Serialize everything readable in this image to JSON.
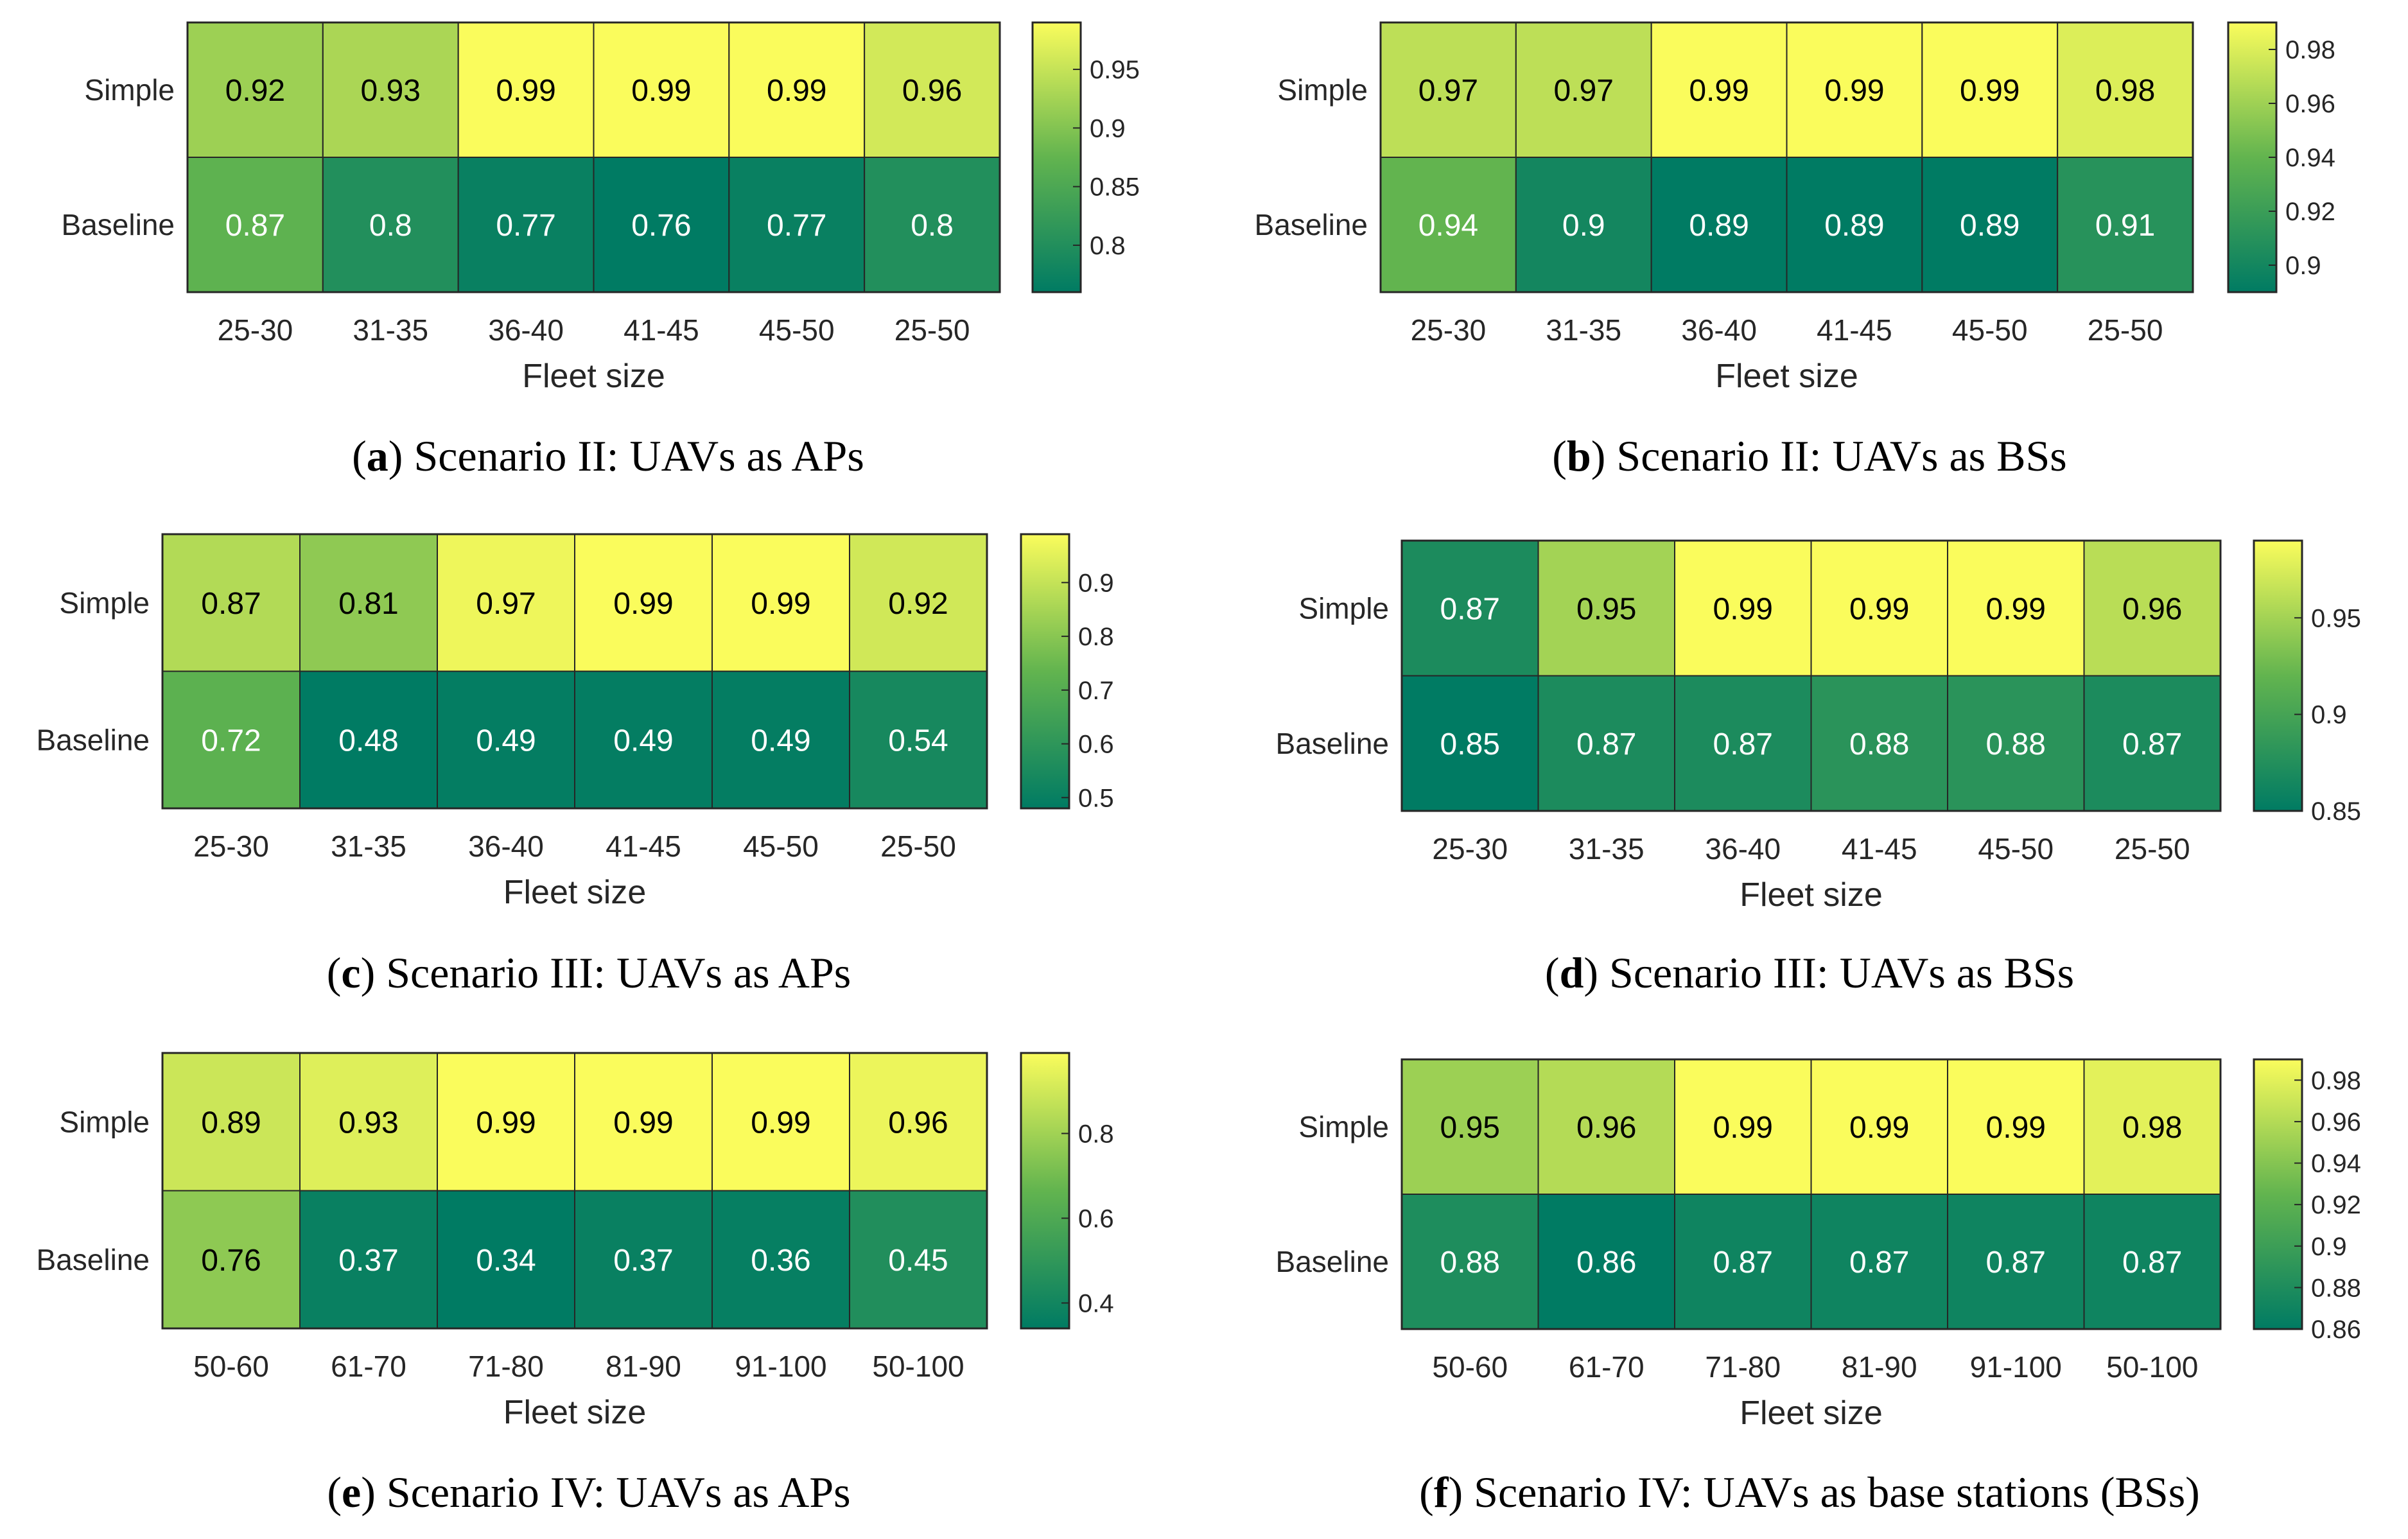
{
  "chart_data": [
    {
      "type": "heatmap",
      "id": "a",
      "caption_letter": "a",
      "caption_text": " Scenario II: UAVs as APs",
      "rows": [
        "Simple",
        "Baseline"
      ],
      "columns": [
        "25-30",
        "31-35",
        "36-40",
        "41-45",
        "45-50",
        "25-50"
      ],
      "values": [
        [
          0.92,
          0.93,
          0.99,
          0.99,
          0.99,
          0.96
        ],
        [
          0.87,
          0.8,
          0.77,
          0.76,
          0.77,
          0.8
        ]
      ],
      "xlabel": "Fleet size",
      "colorbar": {
        "min": 0.76,
        "max": 0.99,
        "ticks": [
          0.8,
          0.85,
          0.9,
          0.95
        ],
        "tick_labels": [
          "0.8",
          "0.85",
          "0.9",
          "0.95"
        ]
      }
    },
    {
      "type": "heatmap",
      "id": "b",
      "caption_letter": "b",
      "caption_text": " Scenario II: UAVs as BSs",
      "rows": [
        "Simple",
        "Baseline"
      ],
      "columns": [
        "25-30",
        "31-35",
        "36-40",
        "41-45",
        "45-50",
        "25-50"
      ],
      "values": [
        [
          0.97,
          0.97,
          0.99,
          0.99,
          0.99,
          0.98
        ],
        [
          0.94,
          0.9,
          0.89,
          0.89,
          0.89,
          0.91
        ]
      ],
      "xlabel": "Fleet size",
      "colorbar": {
        "min": 0.89,
        "max": 0.99,
        "ticks": [
          0.9,
          0.92,
          0.94,
          0.96,
          0.98
        ],
        "tick_labels": [
          "0.9",
          "0.92",
          "0.94",
          "0.96",
          "0.98"
        ]
      }
    },
    {
      "type": "heatmap",
      "id": "c",
      "caption_letter": "c",
      "caption_text": " Scenario III: UAVs as APs",
      "rows": [
        "Simple",
        "Baseline"
      ],
      "columns": [
        "25-30",
        "31-35",
        "36-40",
        "41-45",
        "45-50",
        "25-50"
      ],
      "values": [
        [
          0.87,
          0.81,
          0.97,
          0.99,
          0.99,
          0.92
        ],
        [
          0.72,
          0.48,
          0.49,
          0.49,
          0.49,
          0.54
        ]
      ],
      "xlabel": "Fleet size",
      "colorbar": {
        "min": 0.48,
        "max": 0.99,
        "ticks": [
          0.5,
          0.6,
          0.7,
          0.8,
          0.9
        ],
        "tick_labels": [
          "0.5",
          "0.6",
          "0.7",
          "0.8",
          "0.9"
        ]
      }
    },
    {
      "type": "heatmap",
      "id": "d",
      "caption_letter": "d",
      "caption_text": " Scenario III: UAVs as BSs",
      "rows": [
        "Simple",
        "Baseline"
      ],
      "columns": [
        "25-30",
        "31-35",
        "36-40",
        "41-45",
        "45-50",
        "25-50"
      ],
      "values": [
        [
          0.87,
          0.95,
          0.99,
          0.99,
          0.99,
          0.96
        ],
        [
          0.85,
          0.87,
          0.87,
          0.88,
          0.88,
          0.87
        ]
      ],
      "xlabel": "Fleet size",
      "colorbar": {
        "min": 0.85,
        "max": 0.99,
        "ticks": [
          0.85,
          0.9,
          0.95
        ],
        "tick_labels": [
          "0.85",
          "0.9",
          "0.95"
        ]
      }
    },
    {
      "type": "heatmap",
      "id": "e",
      "caption_letter": "e",
      "caption_text": " Scenario IV: UAVs as APs",
      "rows": [
        "Simple",
        "Baseline"
      ],
      "columns": [
        "50-60",
        "61-70",
        "71-80",
        "81-90",
        "91-100",
        "50-100"
      ],
      "values": [
        [
          0.89,
          0.93,
          0.99,
          0.99,
          0.99,
          0.96
        ],
        [
          0.76,
          0.37,
          0.34,
          0.37,
          0.36,
          0.45
        ]
      ],
      "xlabel": "Fleet size",
      "colorbar": {
        "min": 0.34,
        "max": 0.99,
        "ticks": [
          0.4,
          0.6,
          0.8
        ],
        "tick_labels": [
          "0.4",
          "0.6",
          "0.8"
        ]
      }
    },
    {
      "type": "heatmap",
      "id": "f",
      "caption_letter": "f",
      "caption_text": " Scenario IV: UAVs as base stations (BSs)",
      "rows": [
        "Simple",
        "Baseline"
      ],
      "columns": [
        "50-60",
        "61-70",
        "71-80",
        "81-90",
        "91-100",
        "50-100"
      ],
      "values": [
        [
          0.95,
          0.96,
          0.99,
          0.99,
          0.99,
          0.98
        ],
        [
          0.88,
          0.86,
          0.87,
          0.87,
          0.87,
          0.87
        ]
      ],
      "xlabel": "Fleet size",
      "colorbar": {
        "min": 0.86,
        "max": 0.99,
        "ticks": [
          0.86,
          0.88,
          0.9,
          0.92,
          0.94,
          0.96,
          0.98
        ],
        "tick_labels": [
          "0.86",
          "0.88",
          "0.9",
          "0.92",
          "0.94",
          "0.96",
          "0.98"
        ]
      }
    }
  ],
  "colormap": {
    "low": "#007b63",
    "mid": "#62b44f",
    "high": "#fafc5c"
  }
}
